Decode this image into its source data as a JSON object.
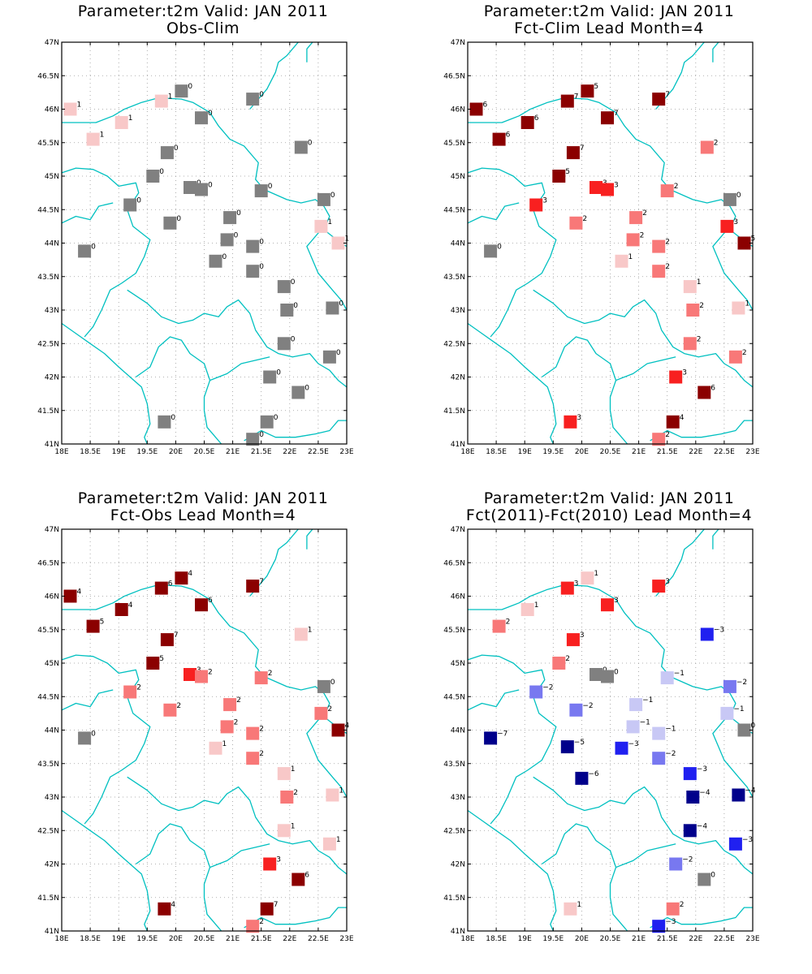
{
  "map": {
    "lon_ticks": [
      "18E",
      "18.5E",
      "19E",
      "19.5E",
      "20E",
      "20.5E",
      "21E",
      "21.5E",
      "22E",
      "22.5E",
      "23E"
    ],
    "lat_ticks": [
      "41N",
      "41.5N",
      "42N",
      "42.5N",
      "43N",
      "43.5N",
      "44N",
      "44.5N",
      "45N",
      "45.5N",
      "46N",
      "46.5N",
      "47N"
    ],
    "lon_range": [
      18,
      23
    ],
    "lat_range": [
      41,
      47
    ],
    "grid": "dotted",
    "border_color": "#00c0c0"
  },
  "color_scale": {
    "-7": "#00008b",
    "-6": "#00008b",
    "-5": "#00008b",
    "-4": "#00008b",
    "-3": "#2020f0",
    "-2": "#7878f0",
    "-1": "#c8c8f5",
    "0": "#808080",
    "1": "#f8c8c8",
    "2": "#f87878",
    "3": "#f82020",
    "4": "#8b0000",
    "5": "#8b0000",
    "6": "#8b0000",
    "7": "#8b0000"
  },
  "panels": [
    {
      "title_line1": "Parameter:t2m Valid: JAN 2011",
      "title_line2": "Obs-Clim",
      "stations": [
        {
          "lon": 18.15,
          "lat": 46.0,
          "v": 1
        },
        {
          "lon": 18.55,
          "lat": 45.55,
          "v": 1
        },
        {
          "lon": 19.05,
          "lat": 45.8,
          "v": 1
        },
        {
          "lon": 19.75,
          "lat": 46.12,
          "v": 1
        },
        {
          "lon": 20.1,
          "lat": 46.27,
          "v": 0
        },
        {
          "lon": 20.45,
          "lat": 45.87,
          "v": 0
        },
        {
          "lon": 21.35,
          "lat": 46.15,
          "v": 0
        },
        {
          "lon": 19.85,
          "lat": 45.35,
          "v": 0
        },
        {
          "lon": 19.6,
          "lat": 45.0,
          "v": 0
        },
        {
          "lon": 20.25,
          "lat": 44.83,
          "v": 0
        },
        {
          "lon": 20.45,
          "lat": 44.8,
          "v": 0
        },
        {
          "lon": 19.2,
          "lat": 44.57,
          "v": 0
        },
        {
          "lon": 19.9,
          "lat": 44.3,
          "v": 0
        },
        {
          "lon": 20.95,
          "lat": 44.38,
          "v": 0
        },
        {
          "lon": 21.5,
          "lat": 44.78,
          "v": 0
        },
        {
          "lon": 22.2,
          "lat": 45.43,
          "v": 0
        },
        {
          "lon": 22.6,
          "lat": 44.65,
          "v": 0
        },
        {
          "lon": 22.55,
          "lat": 44.25,
          "v": 1
        },
        {
          "lon": 22.85,
          "lat": 44.0,
          "v": 1
        },
        {
          "lon": 18.4,
          "lat": 43.88,
          "v": 0
        },
        {
          "lon": 20.9,
          "lat": 44.05,
          "v": 0
        },
        {
          "lon": 21.35,
          "lat": 43.95,
          "v": 0
        },
        {
          "lon": 20.7,
          "lat": 43.73,
          "v": 0
        },
        {
          "lon": 21.35,
          "lat": 43.58,
          "v": 0
        },
        {
          "lon": 21.9,
          "lat": 43.35,
          "v": 0
        },
        {
          "lon": 21.95,
          "lat": 43.0,
          "v": 0
        },
        {
          "lon": 22.75,
          "lat": 43.03,
          "v": 0
        },
        {
          "lon": 21.9,
          "lat": 42.5,
          "v": 0
        },
        {
          "lon": 22.7,
          "lat": 42.3,
          "v": 0
        },
        {
          "lon": 21.65,
          "lat": 42.0,
          "v": 0
        },
        {
          "lon": 22.15,
          "lat": 41.77,
          "v": 0
        },
        {
          "lon": 19.8,
          "lat": 41.33,
          "v": 0
        },
        {
          "lon": 21.6,
          "lat": 41.33,
          "v": 0
        },
        {
          "lon": 21.35,
          "lat": 41.07,
          "v": 0
        }
      ]
    },
    {
      "title_line1": "Parameter:t2m Valid: JAN 2011",
      "title_line2": "Fct-Clim Lead Month=4",
      "stations": [
        {
          "lon": 18.15,
          "lat": 46.0,
          "v": 6
        },
        {
          "lon": 18.55,
          "lat": 45.55,
          "v": 6
        },
        {
          "lon": 19.05,
          "lat": 45.8,
          "v": 6
        },
        {
          "lon": 19.75,
          "lat": 46.12,
          "v": 7
        },
        {
          "lon": 20.1,
          "lat": 46.27,
          "v": 5
        },
        {
          "lon": 20.45,
          "lat": 45.87,
          "v": 7
        },
        {
          "lon": 21.35,
          "lat": 46.15,
          "v": 7
        },
        {
          "lon": 19.85,
          "lat": 45.35,
          "v": 7
        },
        {
          "lon": 19.6,
          "lat": 45.0,
          "v": 5
        },
        {
          "lon": 20.25,
          "lat": 44.83,
          "v": 3
        },
        {
          "lon": 20.45,
          "lat": 44.8,
          "v": 3
        },
        {
          "lon": 19.2,
          "lat": 44.57,
          "v": 3
        },
        {
          "lon": 19.9,
          "lat": 44.3,
          "v": 2
        },
        {
          "lon": 20.95,
          "lat": 44.38,
          "v": 2
        },
        {
          "lon": 21.5,
          "lat": 44.78,
          "v": 2
        },
        {
          "lon": 22.2,
          "lat": 45.43,
          "v": 2
        },
        {
          "lon": 22.6,
          "lat": 44.65,
          "v": 0
        },
        {
          "lon": 22.55,
          "lat": 44.25,
          "v": 3
        },
        {
          "lon": 22.85,
          "lat": 44.0,
          "v": 5
        },
        {
          "lon": 18.4,
          "lat": 43.88,
          "v": 0
        },
        {
          "lon": 20.9,
          "lat": 44.05,
          "v": 2
        },
        {
          "lon": 21.35,
          "lat": 43.95,
          "v": 2
        },
        {
          "lon": 20.7,
          "lat": 43.73,
          "v": 1
        },
        {
          "lon": 21.35,
          "lat": 43.58,
          "v": 2
        },
        {
          "lon": 21.9,
          "lat": 43.35,
          "v": 1
        },
        {
          "lon": 21.95,
          "lat": 43.0,
          "v": 2
        },
        {
          "lon": 22.75,
          "lat": 43.03,
          "v": 1
        },
        {
          "lon": 21.9,
          "lat": 42.5,
          "v": 2
        },
        {
          "lon": 22.7,
          "lat": 42.3,
          "v": 2
        },
        {
          "lon": 21.65,
          "lat": 42.0,
          "v": 3
        },
        {
          "lon": 22.15,
          "lat": 41.77,
          "v": 6
        },
        {
          "lon": 19.8,
          "lat": 41.33,
          "v": 3
        },
        {
          "lon": 21.6,
          "lat": 41.33,
          "v": 4
        },
        {
          "lon": 21.35,
          "lat": 41.07,
          "v": 2
        }
      ]
    },
    {
      "title_line1": "Parameter:t2m Valid: JAN 2011",
      "title_line2": "Fct-Obs Lead Month=4",
      "stations": [
        {
          "lon": 18.15,
          "lat": 46.0,
          "v": 4
        },
        {
          "lon": 18.55,
          "lat": 45.55,
          "v": 5
        },
        {
          "lon": 19.05,
          "lat": 45.8,
          "v": 4
        },
        {
          "lon": 19.75,
          "lat": 46.12,
          "v": 6
        },
        {
          "lon": 20.1,
          "lat": 46.27,
          "v": 4
        },
        {
          "lon": 20.45,
          "lat": 45.87,
          "v": 6
        },
        {
          "lon": 21.35,
          "lat": 46.15,
          "v": 7
        },
        {
          "lon": 19.85,
          "lat": 45.35,
          "v": 7
        },
        {
          "lon": 19.6,
          "lat": 45.0,
          "v": 5
        },
        {
          "lon": 20.25,
          "lat": 44.83,
          "v": 3
        },
        {
          "lon": 20.45,
          "lat": 44.8,
          "v": 2
        },
        {
          "lon": 19.2,
          "lat": 44.57,
          "v": 2
        },
        {
          "lon": 19.9,
          "lat": 44.3,
          "v": 2
        },
        {
          "lon": 20.95,
          "lat": 44.38,
          "v": 2
        },
        {
          "lon": 21.5,
          "lat": 44.78,
          "v": 2
        },
        {
          "lon": 22.2,
          "lat": 45.43,
          "v": 1
        },
        {
          "lon": 22.6,
          "lat": 44.65,
          "v": 0
        },
        {
          "lon": 22.55,
          "lat": 44.25,
          "v": 2
        },
        {
          "lon": 22.85,
          "lat": 44.0,
          "v": 4
        },
        {
          "lon": 18.4,
          "lat": 43.88,
          "v": 0
        },
        {
          "lon": 20.9,
          "lat": 44.05,
          "v": 2
        },
        {
          "lon": 21.35,
          "lat": 43.95,
          "v": 2
        },
        {
          "lon": 20.7,
          "lat": 43.73,
          "v": 1
        },
        {
          "lon": 21.35,
          "lat": 43.58,
          "v": 2
        },
        {
          "lon": 21.9,
          "lat": 43.35,
          "v": 1
        },
        {
          "lon": 21.95,
          "lat": 43.0,
          "v": 2
        },
        {
          "lon": 22.75,
          "lat": 43.03,
          "v": 1
        },
        {
          "lon": 21.9,
          "lat": 42.5,
          "v": 1
        },
        {
          "lon": 22.7,
          "lat": 42.3,
          "v": 1
        },
        {
          "lon": 21.65,
          "lat": 42.0,
          "v": 3
        },
        {
          "lon": 22.15,
          "lat": 41.77,
          "v": 6
        },
        {
          "lon": 19.8,
          "lat": 41.33,
          "v": 4
        },
        {
          "lon": 21.6,
          "lat": 41.33,
          "v": 7
        },
        {
          "lon": 21.35,
          "lat": 41.07,
          "v": 2
        }
      ]
    },
    {
      "title_line1": "Parameter:t2m Valid: JAN 2011",
      "title_line2": "Fct(2011)-Fct(2010) Lead Month=4",
      "stations": [
        {
          "lon": 18.55,
          "lat": 45.55,
          "v": 2
        },
        {
          "lon": 19.05,
          "lat": 45.8,
          "v": 1
        },
        {
          "lon": 19.75,
          "lat": 46.12,
          "v": 3
        },
        {
          "lon": 20.1,
          "lat": 46.27,
          "v": 1
        },
        {
          "lon": 20.45,
          "lat": 45.87,
          "v": 3
        },
        {
          "lon": 21.35,
          "lat": 46.15,
          "v": 3
        },
        {
          "lon": 19.85,
          "lat": 45.35,
          "v": 3
        },
        {
          "lon": 19.6,
          "lat": 45.0,
          "v": 2
        },
        {
          "lon": 20.25,
          "lat": 44.83,
          "v": 0
        },
        {
          "lon": 20.45,
          "lat": 44.8,
          "v": 0
        },
        {
          "lon": 19.2,
          "lat": 44.57,
          "v": -2
        },
        {
          "lon": 19.9,
          "lat": 44.3,
          "v": -2
        },
        {
          "lon": 20.95,
          "lat": 44.38,
          "v": -1
        },
        {
          "lon": 21.5,
          "lat": 44.78,
          "v": -1
        },
        {
          "lon": 22.2,
          "lat": 45.43,
          "v": -3
        },
        {
          "lon": 22.6,
          "lat": 44.65,
          "v": -2
        },
        {
          "lon": 22.55,
          "lat": 44.25,
          "v": -1
        },
        {
          "lon": 22.85,
          "lat": 44.0,
          "v": 0
        },
        {
          "lon": 18.4,
          "lat": 43.88,
          "v": -7
        },
        {
          "lon": 20.9,
          "lat": 44.05,
          "v": -1
        },
        {
          "lon": 21.35,
          "lat": 43.95,
          "v": -1
        },
        {
          "lon": 19.75,
          "lat": 43.75,
          "v": -5
        },
        {
          "lon": 20.7,
          "lat": 43.73,
          "v": -3
        },
        {
          "lon": 21.35,
          "lat": 43.58,
          "v": -2
        },
        {
          "lon": 21.9,
          "lat": 43.35,
          "v": -3
        },
        {
          "lon": 20.0,
          "lat": 43.28,
          "v": -6
        },
        {
          "lon": 21.95,
          "lat": 43.0,
          "v": -4
        },
        {
          "lon": 22.75,
          "lat": 43.03,
          "v": -4
        },
        {
          "lon": 21.9,
          "lat": 42.5,
          "v": -4
        },
        {
          "lon": 22.7,
          "lat": 42.3,
          "v": -3
        },
        {
          "lon": 21.65,
          "lat": 42.0,
          "v": -2
        },
        {
          "lon": 22.15,
          "lat": 41.77,
          "v": 0
        },
        {
          "lon": 19.8,
          "lat": 41.33,
          "v": 1
        },
        {
          "lon": 21.6,
          "lat": 41.33,
          "v": 2
        },
        {
          "lon": 21.35,
          "lat": 41.07,
          "v": -3
        }
      ]
    }
  ]
}
